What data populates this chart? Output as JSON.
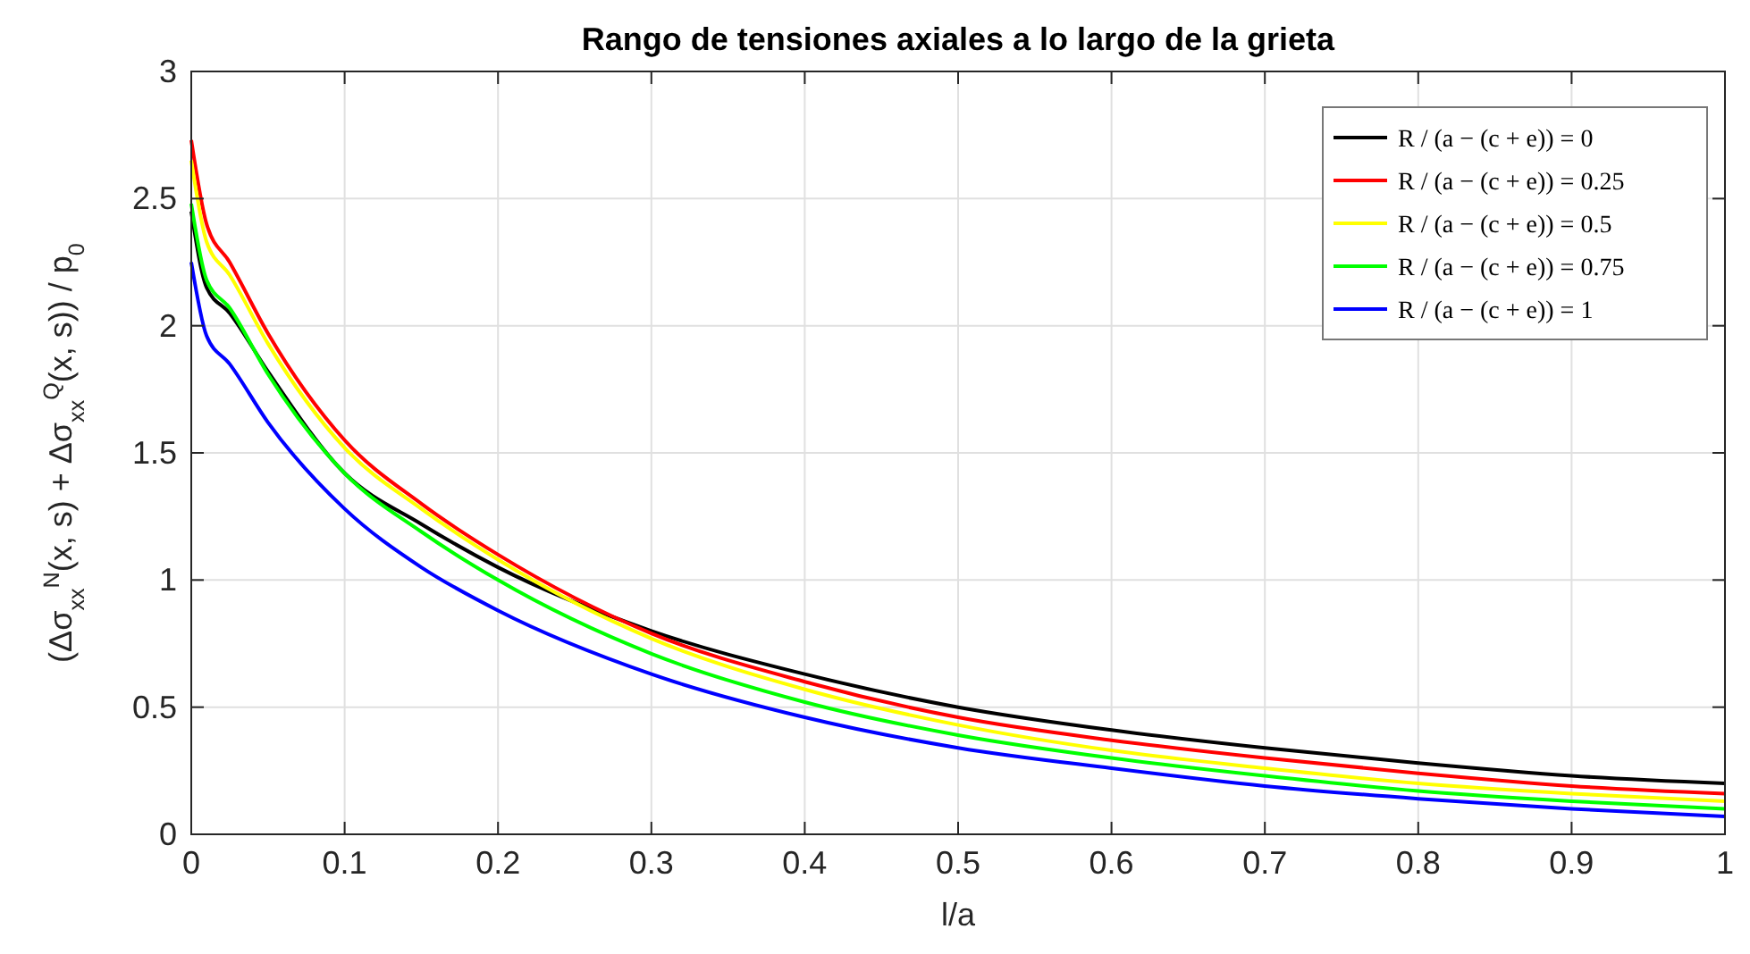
{
  "chart_data": {
    "type": "line",
    "title": "Rango de tensiones axiales a lo largo de la grieta",
    "xlabel": "l/a",
    "ylabel": "(Δσ$_{xx}$$^{N}$(x, s) + Δσ$_{xx}$$^{Q}$(x, s)) / p$_{0}$",
    "x": [
      0,
      0.01,
      0.025,
      0.05,
      0.1,
      0.15,
      0.2,
      0.3,
      0.4,
      0.5,
      0.6,
      0.7,
      0.8,
      0.9,
      1
    ],
    "series": [
      {
        "name": "R / (a − (c + e)) = 0",
        "color": "#000000",
        "values": [
          2.45,
          2.15,
          2.05,
          1.82,
          1.42,
          1.22,
          1.05,
          0.8,
          0.63,
          0.5,
          0.41,
          0.34,
          0.28,
          0.23,
          0.2
        ]
      },
      {
        "name": "R / (a − (c + e)) = 0.25",
        "color": "#ff0000",
        "values": [
          2.73,
          2.4,
          2.25,
          1.97,
          1.55,
          1.3,
          1.1,
          0.79,
          0.6,
          0.46,
          0.37,
          0.3,
          0.24,
          0.19,
          0.16
        ]
      },
      {
        "name": "R / (a − (c + e)) = 0.5",
        "color": "#ffff00",
        "values": [
          2.65,
          2.33,
          2.2,
          1.93,
          1.52,
          1.28,
          1.08,
          0.77,
          0.57,
          0.43,
          0.33,
          0.26,
          0.2,
          0.16,
          0.13
        ]
      },
      {
        "name": "R / (a − (c + e)) = 0.75",
        "color": "#00ff00",
        "values": [
          2.48,
          2.18,
          2.07,
          1.81,
          1.42,
          1.19,
          1.0,
          0.71,
          0.52,
          0.39,
          0.3,
          0.23,
          0.17,
          0.13,
          0.1
        ]
      },
      {
        "name": "R / (a − (c + e)) = 1",
        "color": "#0000ff",
        "values": [
          2.25,
          1.96,
          1.85,
          1.62,
          1.28,
          1.05,
          0.88,
          0.63,
          0.46,
          0.34,
          0.26,
          0.19,
          0.14,
          0.1,
          0.07
        ]
      }
    ],
    "xlim": [
      0,
      1
    ],
    "xticks": [
      0,
      0.1,
      0.2,
      0.3,
      0.4,
      0.5,
      0.6,
      0.7,
      0.8,
      0.9,
      1
    ],
    "ylim": [
      0,
      3
    ],
    "yticks": [
      0,
      0.5,
      1,
      1.5,
      2,
      2.5,
      3
    ],
    "grid": true,
    "legend": "top right",
    "line_style": "solid"
  }
}
